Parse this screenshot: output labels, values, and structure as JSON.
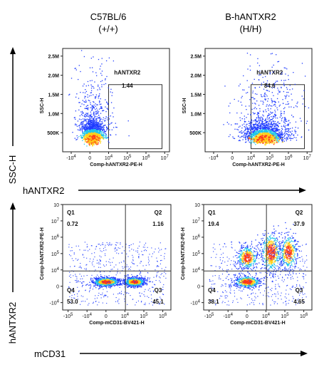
{
  "column_headers": [
    {
      "line1": "C57BL/6",
      "line2": "(+/+)"
    },
    {
      "line1": "B-hANTXR2",
      "line2": "(H/H)"
    }
  ],
  "row1_side_label": "SSC-H",
  "row1_bottom_label": "hANTXR2",
  "row2_side_label": "hANTXR2",
  "row2_bottom_label": "mCD31",
  "chart_data": [
    {
      "type": "scatter",
      "subtype": "flow-cytometry-density-dot-plot",
      "sample": "C57BL/6 (+/+)",
      "xlabel": "Comp-hANTXR2-PE-H",
      "ylabel": "SSC-H",
      "x_scale": "biexponential",
      "x_ticks": [
        "-10",
        "0",
        "10",
        "10",
        "10",
        "10"
      ],
      "x_tick_exps": [
        "4",
        "",
        "4",
        "5",
        "6",
        "7"
      ],
      "y_ticks": [
        "500K",
        "1.0M",
        "1.5M",
        "2.0M",
        "2.5M"
      ],
      "y_values": [
        500000,
        1000000,
        1500000,
        2000000,
        2500000
      ],
      "ylim": [
        0,
        2700000
      ],
      "gates": [
        {
          "name": "hANTXR2",
          "percent": "1.44"
        }
      ],
      "population": {
        "center_x_decade": 0.1,
        "center_y": 250000
      }
    },
    {
      "type": "scatter",
      "subtype": "flow-cytometry-density-dot-plot",
      "sample": "B-hANTXR2 (H/H)",
      "xlabel": "Comp-hANTXR2-PE-H",
      "ylabel": "SSC-H",
      "x_scale": "biexponential",
      "x_ticks": [
        "-10",
        "0",
        "10",
        "10",
        "10",
        "10"
      ],
      "x_tick_exps": [
        "4",
        "",
        "4",
        "5",
        "6",
        "7"
      ],
      "y_ticks": [
        "500K",
        "1.0M",
        "1.5M",
        "2.0M",
        "2.5M"
      ],
      "y_values": [
        500000,
        1000000,
        1500000,
        2000000,
        2500000
      ],
      "ylim": [
        0,
        2700000
      ],
      "gates": [
        {
          "name": "hANTXR2",
          "percent": "84.6"
        }
      ],
      "population": {
        "center_x_decade": 4.4,
        "center_y": 220000
      }
    },
    {
      "type": "scatter",
      "subtype": "flow-cytometry-quadrant-plot",
      "sample": "C57BL/6 (+/+)",
      "xlabel": "Comp-mCD31-BV421-H",
      "ylabel": "Comp-hANTXR2-PE-H",
      "x_ticks": [
        "-10",
        "-10",
        "0",
        "10",
        "10",
        "10"
      ],
      "x_tick_exps": [
        "5",
        "4",
        "",
        "4",
        "5",
        "6"
      ],
      "y_ticks": [
        "-10",
        "0",
        "10",
        "10",
        "10",
        "10",
        "10"
      ],
      "y_tick_exps": [
        "4",
        "",
        "4",
        "5",
        "6",
        "7",
        ""
      ],
      "quadrants": [
        {
          "name": "Q1",
          "percent": "0.72"
        },
        {
          "name": "Q2",
          "percent": "1.16"
        },
        {
          "name": "Q3",
          "percent": "45.1"
        },
        {
          "name": "Q4",
          "percent": "53.0"
        }
      ]
    },
    {
      "type": "scatter",
      "subtype": "flow-cytometry-quadrant-plot",
      "sample": "B-hANTXR2 (H/H)",
      "xlabel": "Comp-mCD31-BV421-H",
      "ylabel": "Comp-hANTXR2-PE-H",
      "x_ticks": [
        "-10",
        "-10",
        "0",
        "10",
        "10",
        "10"
      ],
      "x_tick_exps": [
        "5",
        "4",
        "",
        "4",
        "5",
        "6"
      ],
      "y_ticks": [
        "-10",
        "0",
        "10",
        "10",
        "10",
        "10",
        "10"
      ],
      "y_tick_exps": [
        "4",
        "",
        "4",
        "5",
        "6",
        "7",
        ""
      ],
      "quadrants": [
        {
          "name": "Q1",
          "percent": "19.4"
        },
        {
          "name": "Q2",
          "percent": "37.9"
        },
        {
          "name": "Q3",
          "percent": "4.65"
        },
        {
          "name": "Q4",
          "percent": "38.1"
        }
      ]
    }
  ],
  "colors": {
    "axis": "#222222",
    "gate": "#333333",
    "text": "#111111",
    "density_low": "#1f3cff",
    "density_mid": "#22c7e8",
    "density_high": "#ffd11a",
    "density_peak": "#ff3a1a"
  }
}
